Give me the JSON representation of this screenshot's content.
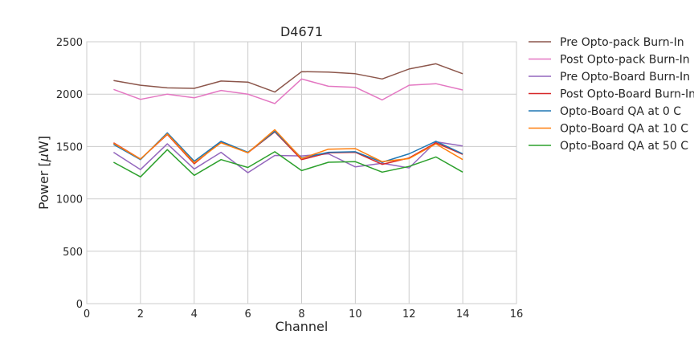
{
  "chart_data": {
    "type": "line",
    "title": "D4671",
    "xlabel": "Channel",
    "ylabel_prefix": "Power [",
    "ylabel_unit_mu": "μ",
    "ylabel_suffix": "W]",
    "xlim": [
      0,
      16
    ],
    "ylim": [
      0,
      2500
    ],
    "xticks": [
      0,
      2,
      4,
      6,
      8,
      10,
      12,
      14,
      16
    ],
    "yticks": [
      0,
      500,
      1000,
      1500,
      2000,
      2500
    ],
    "grid": true,
    "legend_position": "outside-right",
    "x": [
      1,
      2,
      3,
      4,
      5,
      6,
      7,
      8,
      9,
      10,
      11,
      12,
      13,
      14
    ],
    "series": [
      {
        "name": "Pre Opto-pack Burn-In",
        "color": "#8c564b",
        "values": [
          2130,
          2085,
          2060,
          2055,
          2125,
          2115,
          2020,
          2215,
          2210,
          2195,
          2145,
          2240,
          2290,
          2195
        ]
      },
      {
        "name": "Post Opto-pack Burn-In",
        "color": "#e377c2",
        "values": [
          2045,
          1950,
          2000,
          1965,
          2035,
          2000,
          1910,
          2145,
          2075,
          2065,
          1945,
          2085,
          2100,
          2040
        ]
      },
      {
        "name": "Pre Opto-Board Burn-In",
        "color": "#9467bd",
        "values": [
          1445,
          1280,
          1525,
          1285,
          1445,
          1250,
          1415,
          1410,
          1430,
          1305,
          1340,
          1295,
          1545,
          1505
        ]
      },
      {
        "name": "Post Opto-Board Burn-In",
        "color": "#d62728",
        "values": [
          1535,
          1380,
          1615,
          1335,
          1545,
          1440,
          1640,
          1375,
          1440,
          1445,
          1330,
          1390,
          1535,
          1425
        ]
      },
      {
        "name": "Opto-Board QA at 0 C",
        "color": "#1f77b4",
        "values": [
          1520,
          1375,
          1630,
          1360,
          1550,
          1445,
          1645,
          1390,
          1445,
          1450,
          1350,
          1430,
          1550,
          1430
        ]
      },
      {
        "name": "Opto-Board QA at 10 C",
        "color": "#ff7f0e",
        "values": [
          1530,
          1380,
          1620,
          1345,
          1535,
          1440,
          1660,
          1385,
          1475,
          1480,
          1355,
          1385,
          1525,
          1375
        ]
      },
      {
        "name": "Opto-Board QA at 50 C",
        "color": "#2ca02c",
        "values": [
          1350,
          1210,
          1470,
          1225,
          1375,
          1300,
          1450,
          1270,
          1350,
          1355,
          1255,
          1310,
          1400,
          1255
        ]
      }
    ]
  }
}
